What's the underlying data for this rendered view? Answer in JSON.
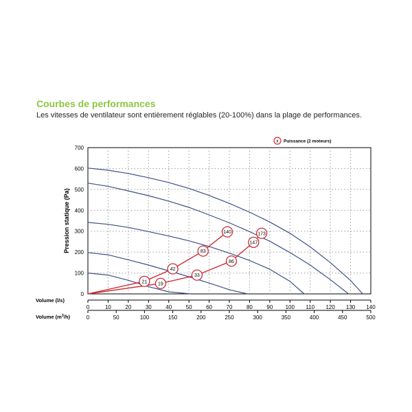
{
  "heading": "Courbes de performances",
  "subtitle": "Les vitesses de ventilateur sont entièrement réglables (20-100%) dans la plage de performances.",
  "colors": {
    "heading": "#8cc63f",
    "fan_curve": "#3b4f87",
    "power": "#cc2b34",
    "grid": "#999999"
  },
  "chart_data": {
    "type": "line",
    "ylabel": "Pression statique (Pa)",
    "ylim": [
      0,
      700
    ],
    "yticks": [
      0,
      100,
      200,
      300,
      400,
      500,
      600,
      700
    ],
    "x_axes": [
      {
        "label": "Volume (l/s)",
        "range": [
          0,
          140
        ],
        "ticks": [
          0,
          10,
          20,
          30,
          40,
          50,
          60,
          70,
          80,
          90,
          100,
          110,
          120,
          130,
          140
        ]
      },
      {
        "label": "Volume (m³/h)",
        "label_base": "Volume (m",
        "label_sup": "3",
        "label_tail": "/h)",
        "range": [
          0,
          500
        ],
        "ticks": [
          0,
          50,
          100,
          150,
          200,
          250,
          300,
          350,
          400,
          450,
          500
        ]
      }
    ],
    "grid": true,
    "legend": {
      "marker": "x",
      "label": "Puissance (2 moteurs)",
      "position": "top-right"
    },
    "fan_curves": [
      {
        "points": [
          [
            0,
            100
          ],
          [
            10,
            90
          ],
          [
            20,
            65
          ],
          [
            30,
            35
          ],
          [
            40,
            10
          ],
          [
            51,
            0
          ]
        ]
      },
      {
        "points": [
          [
            0,
            198
          ],
          [
            10,
            187
          ],
          [
            20,
            163
          ],
          [
            30,
            138
          ],
          [
            40,
            110
          ],
          [
            50,
            82
          ],
          [
            60,
            52
          ],
          [
            70,
            20
          ],
          [
            79,
            0
          ]
        ]
      },
      {
        "points": [
          [
            0,
            342
          ],
          [
            10,
            333
          ],
          [
            20,
            318
          ],
          [
            30,
            298
          ],
          [
            40,
            277
          ],
          [
            50,
            254
          ],
          [
            60,
            227
          ],
          [
            70,
            195
          ],
          [
            80,
            160
          ],
          [
            90,
            118
          ],
          [
            100,
            60
          ],
          [
            107,
            0
          ]
        ]
      },
      {
        "points": [
          [
            0,
            530
          ],
          [
            10,
            515
          ],
          [
            20,
            493
          ],
          [
            30,
            470
          ],
          [
            40,
            444
          ],
          [
            50,
            414
          ],
          [
            60,
            378
          ],
          [
            70,
            340
          ],
          [
            80,
            298
          ],
          [
            90,
            252
          ],
          [
            100,
            198
          ],
          [
            110,
            138
          ],
          [
            120,
            68
          ],
          [
            129,
            0
          ]
        ]
      },
      {
        "points": [
          [
            0,
            602
          ],
          [
            10,
            592
          ],
          [
            20,
            576
          ],
          [
            30,
            556
          ],
          [
            40,
            533
          ],
          [
            50,
            505
          ],
          [
            60,
            471
          ],
          [
            70,
            433
          ],
          [
            80,
            391
          ],
          [
            90,
            344
          ],
          [
            100,
            290
          ],
          [
            110,
            225
          ],
          [
            120,
            150
          ],
          [
            130,
            64
          ],
          [
            136,
            0
          ]
        ]
      }
    ],
    "power_series": [
      {
        "points": [
          {
            "x": 0,
            "y": 0
          },
          {
            "x": 28,
            "y": 60,
            "label": "21"
          },
          {
            "x": 42,
            "y": 120,
            "label": "42"
          },
          {
            "x": 57,
            "y": 205,
            "label": "83"
          },
          {
            "x": 69,
            "y": 297,
            "label": "140"
          }
        ]
      },
      {
        "points": [
          {
            "x": 0,
            "y": 0
          },
          {
            "x": 36,
            "y": 50,
            "label": "19"
          },
          {
            "x": 54,
            "y": 90,
            "label": "33"
          },
          {
            "x": 71,
            "y": 157,
            "label": "86"
          },
          {
            "x": 82,
            "y": 247,
            "label": "147"
          },
          {
            "x": 86,
            "y": 290,
            "label": "173"
          }
        ]
      }
    ]
  }
}
